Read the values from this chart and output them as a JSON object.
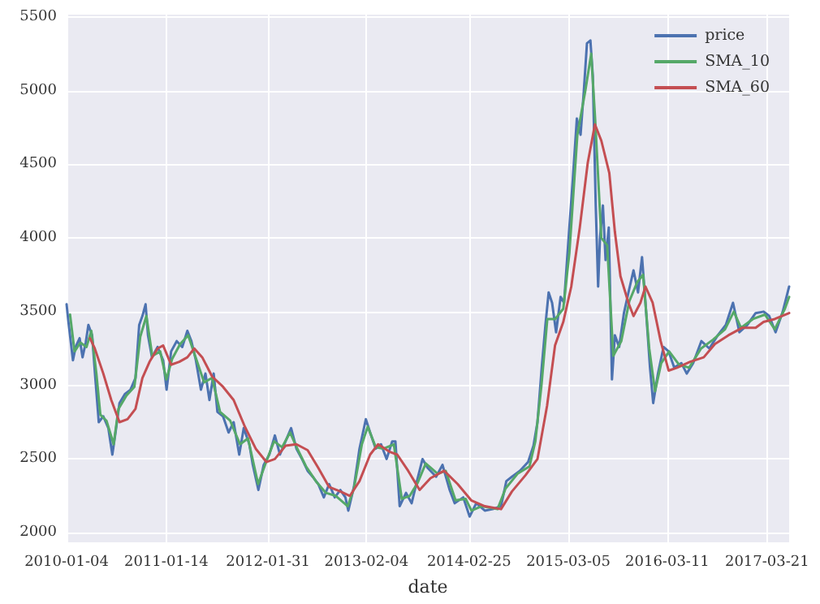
{
  "chart_data": {
    "type": "line",
    "xlabel": "date",
    "xlim": [
      "2010-01-04",
      "2017-06-12"
    ],
    "xticks": [
      "2010-01-04",
      "2011-01-14",
      "2012-01-31",
      "2013-02-04",
      "2014-02-25",
      "2015-03-05",
      "2016-03-11",
      "2017-03-21"
    ],
    "ylim": [
      1935,
      5515
    ],
    "yticks": [
      2000,
      2500,
      3000,
      3500,
      4000,
      4500,
      5000,
      5500
    ],
    "grid": true,
    "legend": "top right",
    "marker": "none",
    "line_style": "solid",
    "series": [
      {
        "name": "price",
        "color": "#4c72b0",
        "x": [
          "2010-01-04",
          "2010-01-11",
          "2010-01-28",
          "2010-02-07",
          "2010-02-22",
          "2010-03-05",
          "2010-03-17",
          "2010-03-27",
          "2010-04-10",
          "2010-04-22",
          "2010-05-05",
          "2010-05-22",
          "2010-06-10",
          "2010-06-25",
          "2010-07-07",
          "2010-07-22",
          "2010-08-11",
          "2010-09-01",
          "2010-09-20",
          "2010-10-04",
          "2010-10-16",
          "2010-10-28",
          "2010-11-06",
          "2010-11-21",
          "2010-12-12",
          "2011-01-02",
          "2011-01-15",
          "2011-02-01",
          "2011-02-22",
          "2011-03-15",
          "2011-04-03",
          "2011-04-18",
          "2011-05-05",
          "2011-05-24",
          "2011-06-10",
          "2011-06-25",
          "2011-07-11",
          "2011-07-25",
          "2011-08-15",
          "2011-09-05",
          "2011-09-24",
          "2011-10-15",
          "2011-11-01",
          "2011-11-22",
          "2011-12-05",
          "2011-12-26",
          "2012-01-15",
          "2012-02-05",
          "2012-02-26",
          "2012-03-16",
          "2012-04-06",
          "2012-04-27",
          "2012-05-17",
          "2012-06-07",
          "2012-06-28",
          "2012-07-17",
          "2012-08-07",
          "2012-08-28",
          "2012-09-17",
          "2012-10-08",
          "2012-10-29",
          "2012-11-17",
          "2012-11-28",
          "2012-12-19",
          "2013-01-09",
          "2013-02-02",
          "2013-02-18",
          "2013-03-11",
          "2013-03-31",
          "2013-04-21",
          "2013-05-12",
          "2013-05-24",
          "2013-06-09",
          "2013-07-03",
          "2013-07-24",
          "2013-08-13",
          "2013-09-03",
          "2013-09-22",
          "2013-10-24",
          "2013-11-17",
          "2013-12-14",
          "2014-01-02",
          "2014-02-03",
          "2014-02-27",
          "2014-03-24",
          "2014-04-25",
          "2014-05-25",
          "2014-06-25",
          "2014-07-15",
          "2014-08-05",
          "2014-09-04",
          "2014-10-05",
          "2014-10-25",
          "2014-11-09",
          "2014-11-25",
          "2014-12-09",
          "2014-12-21",
          "2015-01-03",
          "2015-01-18",
          "2015-02-04",
          "2015-02-17",
          "2015-03-06",
          "2015-03-22",
          "2015-04-06",
          "2015-04-20",
          "2015-05-02",
          "2015-05-14",
          "2015-05-27",
          "2015-06-05",
          "2015-06-16",
          "2015-06-25",
          "2015-07-02",
          "2015-07-13",
          "2015-07-23",
          "2015-08-04",
          "2015-08-16",
          "2015-08-27",
          "2015-09-12",
          "2015-09-30",
          "2015-10-17",
          "2015-11-05",
          "2015-11-22",
          "2015-12-07",
          "2015-12-20",
          "2016-01-06",
          "2016-01-18",
          "2016-02-05",
          "2016-02-26",
          "2016-03-16",
          "2016-04-06",
          "2016-05-03",
          "2016-05-23",
          "2016-06-16",
          "2016-07-17",
          "2016-08-16",
          "2016-09-17",
          "2016-10-17",
          "2016-11-13",
          "2016-12-07",
          "2017-01-06",
          "2017-02-06",
          "2017-03-08",
          "2017-03-29",
          "2017-04-22",
          "2017-05-19",
          "2017-06-12"
        ],
        "values": [
          3550,
          3430,
          3170,
          3260,
          3320,
          3190,
          3290,
          3410,
          3340,
          3050,
          2750,
          2790,
          2710,
          2530,
          2680,
          2880,
          2940,
          2970,
          3050,
          3410,
          3470,
          3550,
          3340,
          3190,
          3260,
          3170,
          2970,
          3230,
          3300,
          3260,
          3370,
          3300,
          3170,
          2970,
          3080,
          2900,
          3080,
          2820,
          2790,
          2680,
          2750,
          2530,
          2710,
          2600,
          2460,
          2290,
          2460,
          2530,
          2660,
          2530,
          2620,
          2710,
          2570,
          2500,
          2420,
          2380,
          2330,
          2240,
          2330,
          2240,
          2290,
          2240,
          2150,
          2310,
          2570,
          2770,
          2680,
          2570,
          2600,
          2500,
          2620,
          2620,
          2180,
          2270,
          2200,
          2350,
          2500,
          2440,
          2380,
          2460,
          2290,
          2200,
          2240,
          2110,
          2200,
          2150,
          2160,
          2180,
          2350,
          2380,
          2420,
          2480,
          2590,
          2750,
          3120,
          3410,
          3630,
          3560,
          3360,
          3600,
          3560,
          4000,
          4400,
          4810,
          4700,
          4990,
          5320,
          5340,
          5100,
          4220,
          3670,
          4000,
          4220,
          3850,
          4070,
          3040,
          3340,
          3260,
          3490,
          3630,
          3780,
          3630,
          3870,
          3560,
          3120,
          2880,
          3080,
          3260,
          3230,
          3120,
          3150,
          3080,
          3150,
          3300,
          3250,
          3340,
          3410,
          3560,
          3360,
          3410,
          3490,
          3500,
          3470,
          3360,
          3500,
          3670
        ]
      },
      {
        "name": "SMA_10",
        "color": "#55a868",
        "x": [
          "2010-01-17",
          "2010-02-03",
          "2010-02-25",
          "2010-03-20",
          "2010-04-07",
          "2010-04-26",
          "2010-05-11",
          "2010-06-03",
          "2010-06-30",
          "2010-07-18",
          "2010-08-17",
          "2010-09-16",
          "2010-10-08",
          "2010-10-31",
          "2010-11-22",
          "2010-12-22",
          "2011-01-14",
          "2011-02-05",
          "2011-03-07",
          "2011-04-06",
          "2011-05-06",
          "2011-06-05",
          "2011-07-05",
          "2011-08-04",
          "2011-09-11",
          "2011-10-18",
          "2011-11-17",
          "2011-12-25",
          "2012-01-24",
          "2012-02-23",
          "2012-03-24",
          "2012-04-23",
          "2012-05-23",
          "2012-06-22",
          "2012-07-29",
          "2012-09-05",
          "2012-10-12",
          "2012-11-26",
          "2012-12-19",
          "2013-01-18",
          "2013-02-09",
          "2013-03-11",
          "2013-04-10",
          "2013-05-18",
          "2013-06-17",
          "2013-07-17",
          "2013-08-16",
          "2013-09-15",
          "2013-10-30",
          "2013-11-29",
          "2014-01-05",
          "2014-02-12",
          "2014-03-06",
          "2014-04-13",
          "2014-06-12",
          "2014-07-12",
          "2014-08-26",
          "2014-10-10",
          "2014-11-01",
          "2014-11-24",
          "2014-12-16",
          "2015-01-15",
          "2015-02-14",
          "2015-03-09",
          "2015-04-08",
          "2015-05-08",
          "2015-05-30",
          "2015-06-14",
          "2015-07-07",
          "2015-07-29",
          "2015-08-21",
          "2015-09-20",
          "2015-10-20",
          "2015-11-19",
          "2015-12-11",
          "2016-01-03",
          "2016-01-25",
          "2016-02-17",
          "2016-03-18",
          "2016-04-24",
          "2016-06-01",
          "2016-07-16",
          "2016-08-30",
          "2016-10-14",
          "2016-11-16",
          "2016-12-13",
          "2017-01-27",
          "2017-03-13",
          "2017-04-19",
          "2017-05-27",
          "2017-06-12"
        ],
        "values": [
          3480,
          3230,
          3290,
          3260,
          3370,
          3080,
          2800,
          2760,
          2600,
          2840,
          2930,
          2990,
          3330,
          3470,
          3200,
          3230,
          3040,
          3180,
          3280,
          3340,
          3180,
          3020,
          3050,
          2820,
          2760,
          2600,
          2640,
          2330,
          2480,
          2620,
          2580,
          2680,
          2560,
          2450,
          2350,
          2270,
          2250,
          2180,
          2300,
          2600,
          2720,
          2580,
          2570,
          2600,
          2230,
          2250,
          2340,
          2470,
          2400,
          2420,
          2220,
          2230,
          2150,
          2180,
          2160,
          2300,
          2400,
          2450,
          2620,
          3000,
          3450,
          3450,
          3520,
          3900,
          4700,
          5000,
          5250,
          4800,
          4000,
          3950,
          3200,
          3300,
          3570,
          3700,
          3750,
          3250,
          2960,
          3150,
          3230,
          3140,
          3120,
          3250,
          3310,
          3380,
          3500,
          3390,
          3450,
          3480,
          3380,
          3520,
          3600
        ]
      },
      {
        "name": "SMA_60",
        "color": "#c44e52",
        "x": [
          "2010-04-02",
          "2010-04-20",
          "2010-05-22",
          "2010-06-21",
          "2010-07-22",
          "2010-08-21",
          "2010-09-20",
          "2010-10-16",
          "2010-11-12",
          "2010-12-12",
          "2011-01-02",
          "2011-02-01",
          "2011-03-04",
          "2011-04-03",
          "2011-04-29",
          "2011-05-29",
          "2011-07-05",
          "2011-08-15",
          "2011-09-24",
          "2011-11-05",
          "2011-12-16",
          "2012-01-25",
          "2012-02-26",
          "2012-04-06",
          "2012-05-17",
          "2012-06-28",
          "2012-08-07",
          "2012-09-17",
          "2012-10-29",
          "2012-12-04",
          "2013-01-09",
          "2013-02-18",
          "2013-03-20",
          "2013-05-01",
          "2013-05-31",
          "2013-07-11",
          "2013-08-23",
          "2013-10-03",
          "2013-11-23",
          "2014-01-13",
          "2014-03-05",
          "2014-04-25",
          "2014-06-25",
          "2014-08-05",
          "2014-09-25",
          "2014-11-09",
          "2014-12-15",
          "2015-01-14",
          "2015-02-14",
          "2015-03-16",
          "2015-04-17",
          "2015-05-17",
          "2015-06-13",
          "2015-07-07",
          "2015-08-06",
          "2015-08-27",
          "2015-09-17",
          "2015-10-17",
          "2015-11-05",
          "2015-12-01",
          "2015-12-20",
          "2016-01-16",
          "2016-02-15",
          "2016-03-16",
          "2016-04-17",
          "2016-06-05",
          "2016-07-26",
          "2016-09-06",
          "2016-10-27",
          "2016-12-17",
          "2017-02-06",
          "2017-03-08",
          "2017-04-19",
          "2017-06-12"
        ],
        "values": [
          3320,
          3250,
          3080,
          2900,
          2750,
          2770,
          2840,
          3050,
          3160,
          3250,
          3270,
          3140,
          3160,
          3190,
          3250,
          3190,
          3060,
          2990,
          2900,
          2720,
          2570,
          2480,
          2500,
          2590,
          2600,
          2560,
          2440,
          2310,
          2280,
          2250,
          2350,
          2530,
          2600,
          2550,
          2530,
          2420,
          2290,
          2370,
          2420,
          2330,
          2220,
          2180,
          2160,
          2280,
          2390,
          2500,
          2860,
          3270,
          3430,
          3670,
          4070,
          4510,
          4770,
          4660,
          4440,
          4040,
          3740,
          3560,
          3470,
          3560,
          3670,
          3560,
          3300,
          3100,
          3120,
          3160,
          3190,
          3280,
          3340,
          3390,
          3390,
          3430,
          3450,
          3490
        ]
      }
    ]
  }
}
